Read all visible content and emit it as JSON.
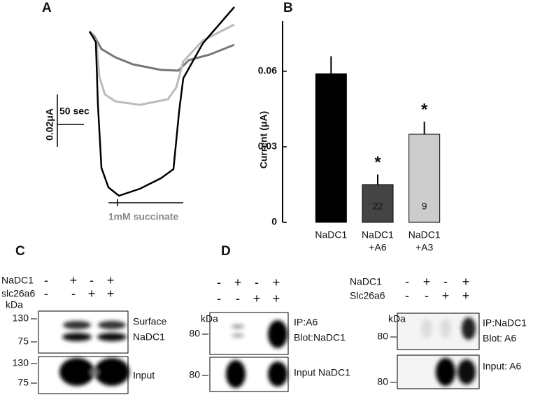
{
  "panel_a": {
    "label": "A",
    "scale_time": "50 sec",
    "scale_current": "0.02μA",
    "stimulus": "1mM succinate"
  },
  "chart_data": {
    "type": "bar",
    "panel_label": "B",
    "y_label": "Current (μA)",
    "categories": [
      [
        "NaDC1"
      ],
      [
        "NaDC1",
        "+A6"
      ],
      [
        "NaDC1",
        "+A3"
      ]
    ],
    "values": [
      0.059,
      0.015,
      0.035
    ],
    "errors": [
      0.007,
      0.004,
      0.005
    ],
    "colors": [
      "#000000",
      "#444444",
      "#cccccc"
    ],
    "n_labels": [
      null,
      "22",
      "9"
    ],
    "significance": [
      null,
      "*",
      "*"
    ],
    "ylim": [
      0,
      0.08
    ],
    "yticks": [
      0,
      0.03,
      0.06
    ]
  },
  "panel_c": {
    "label": "C",
    "kda": "kDa",
    "conditions": [
      {
        "name": "NaDC1",
        "signs": [
          "-",
          "+",
          "-",
          "+"
        ]
      },
      {
        "name": "slc26a6",
        "signs": [
          "-",
          "-",
          "+",
          "+"
        ]
      }
    ],
    "blots": [
      {
        "markers": [
          "130",
          "75"
        ],
        "caption": [
          "Surface",
          "NaDC1"
        ]
      },
      {
        "markers": [
          "130",
          "75"
        ],
        "caption": [
          "Input"
        ]
      }
    ]
  },
  "panel_d": {
    "label": "D",
    "left": {
      "kda": "kDa",
      "conditions": [
        {
          "signs": [
            "-",
            "+",
            "-",
            "+"
          ]
        },
        {
          "signs": [
            "-",
            "-",
            "+",
            "+"
          ]
        }
      ],
      "blots": [
        {
          "markers": [
            "80"
          ],
          "caption": [
            "IP:A6",
            "Blot:NaDC1"
          ]
        },
        {
          "markers": [
            "80"
          ],
          "caption": [
            "Input NaDC1"
          ]
        }
      ]
    },
    "right": {
      "kda": "kDa",
      "conditions": [
        {
          "name": "NaDC1",
          "signs": [
            "-",
            "+",
            "-",
            "+"
          ]
        },
        {
          "name": "Slc26a6",
          "signs": [
            "-",
            "-",
            "+",
            "+"
          ]
        }
      ],
      "blots": [
        {
          "markers": [
            "80"
          ],
          "caption": [
            "IP:NaDC1",
            "Blot: A6"
          ]
        },
        {
          "markers": [
            "80"
          ],
          "caption": [
            "Input: A6"
          ]
        }
      ]
    }
  }
}
